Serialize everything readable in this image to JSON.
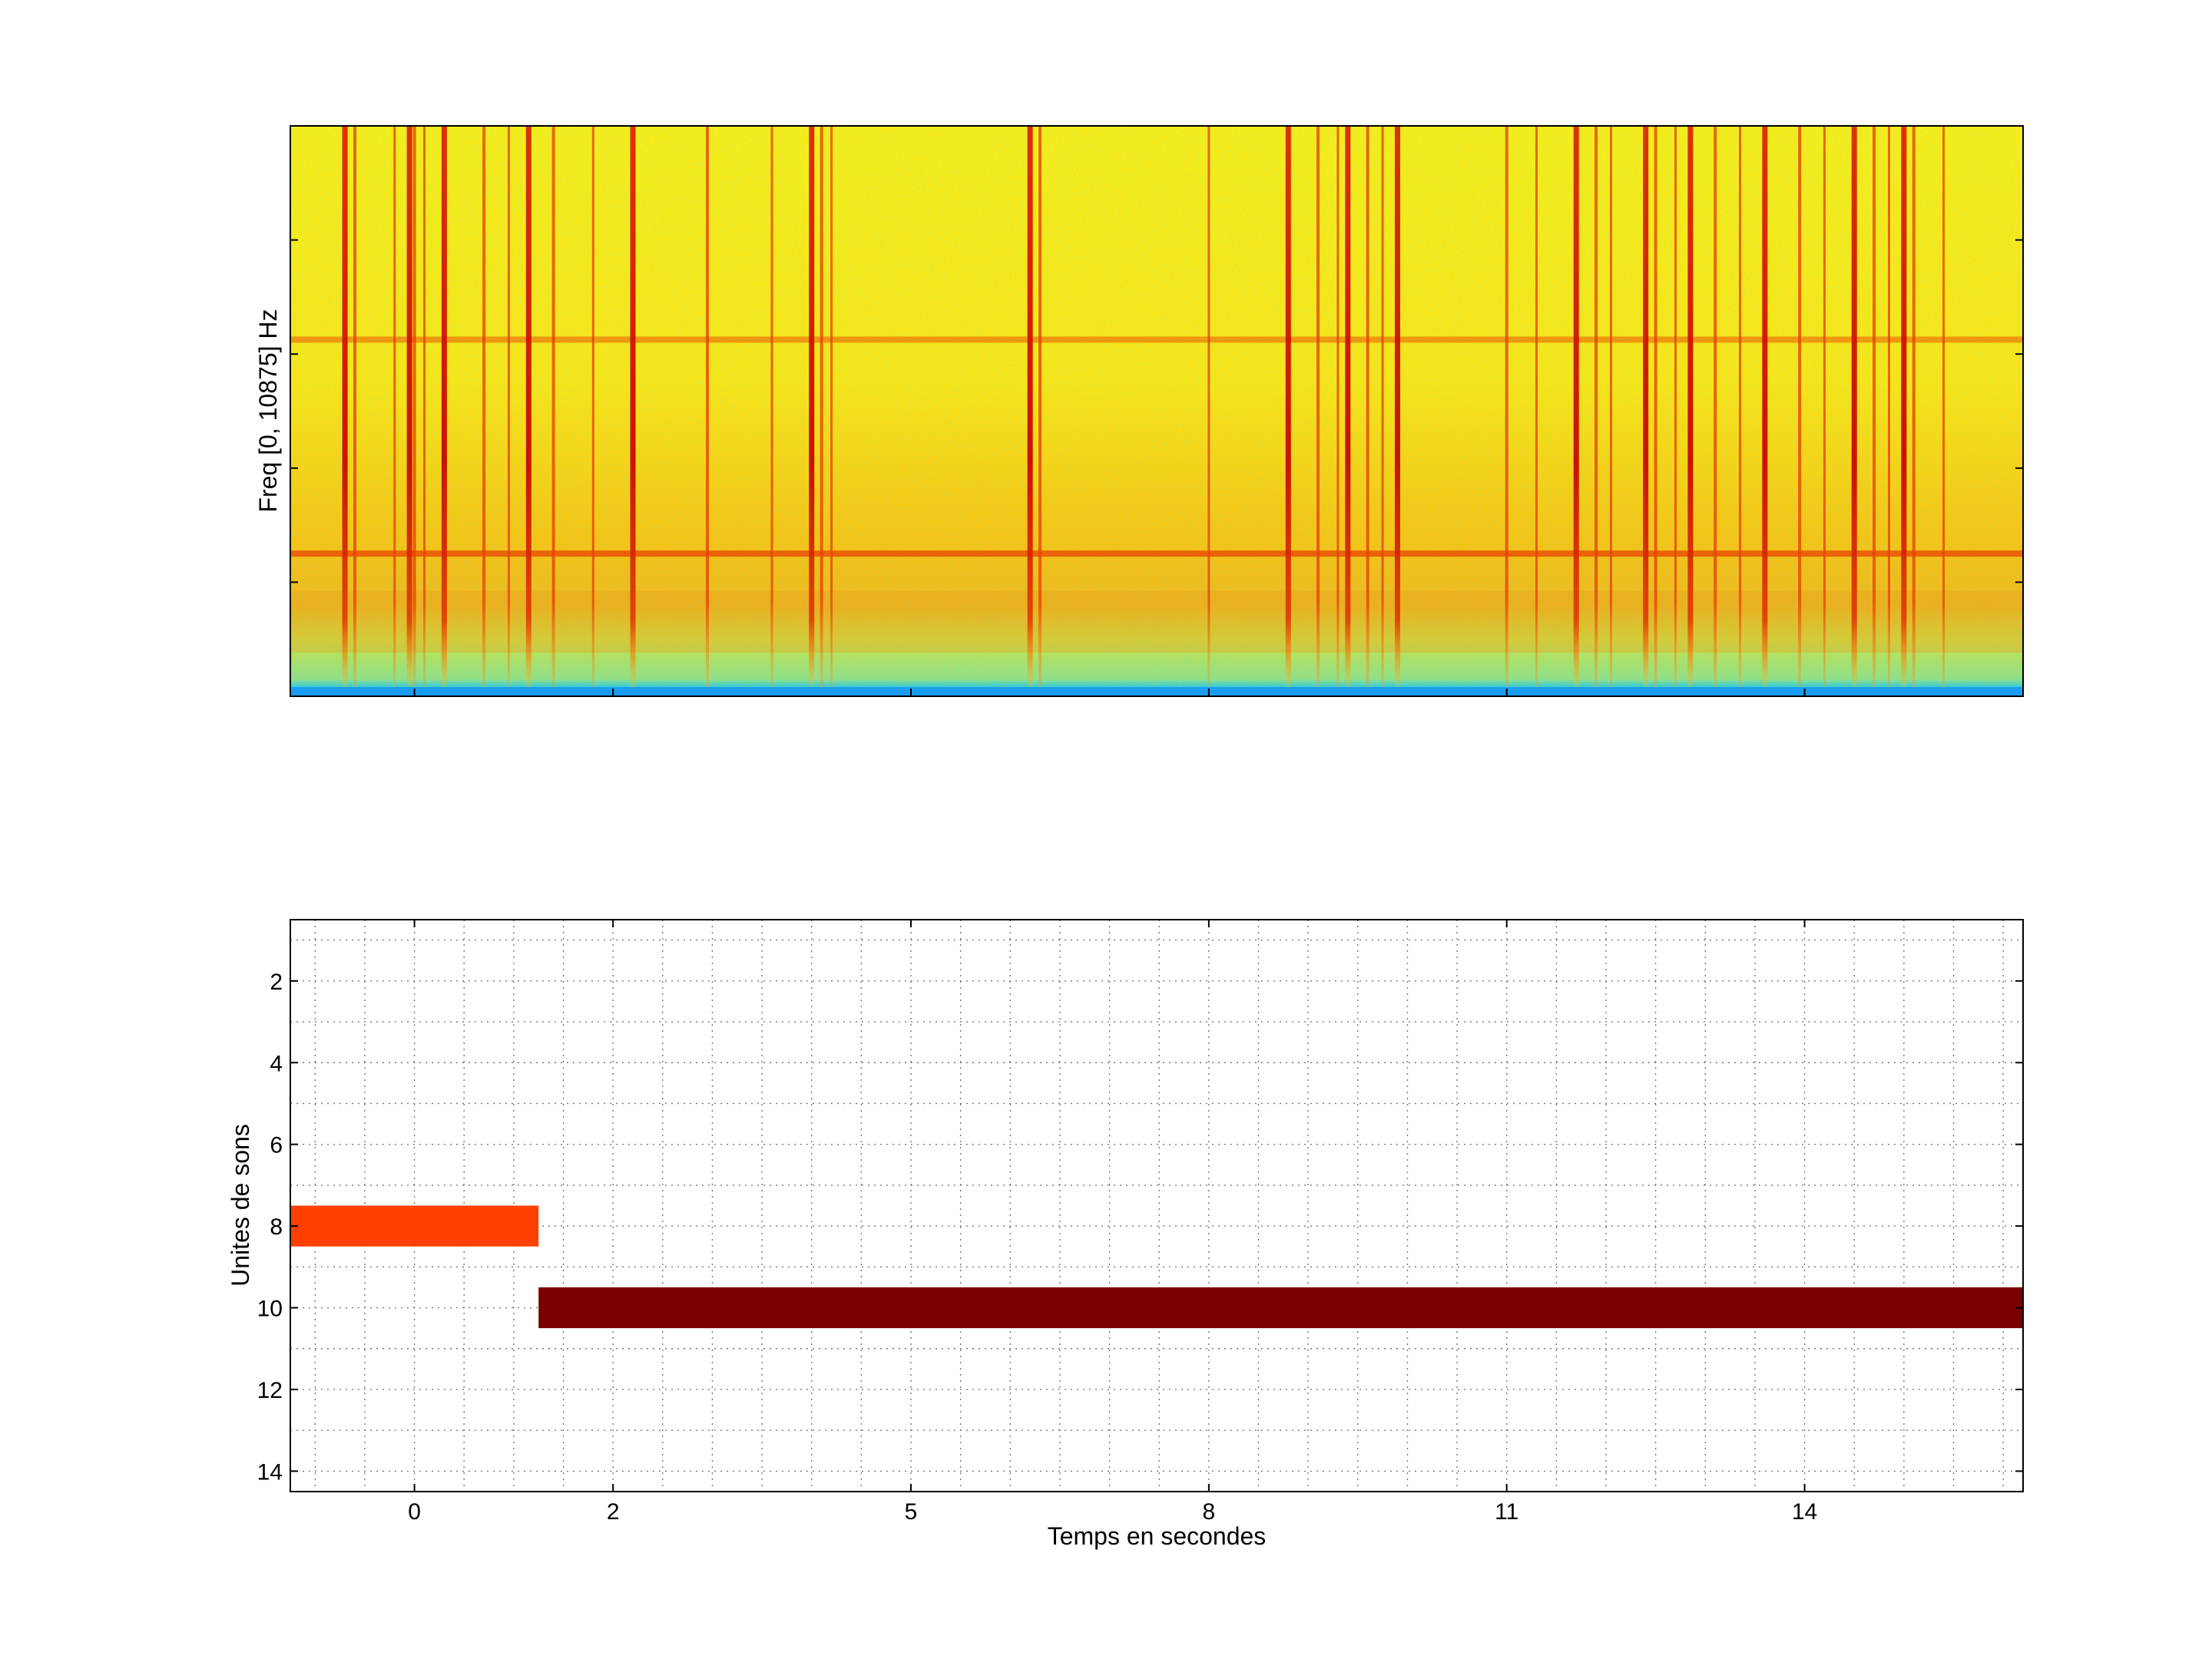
{
  "chart_data": [
    {
      "type": "heatmap",
      "title": "",
      "xlabel": "",
      "ylabel": "Freq [0, 10875] Hz",
      "y_range_hz": [
        0,
        10875
      ],
      "colormap": "jet",
      "grid": false,
      "horizontal_bands_hz": [
        2720,
        6800
      ],
      "vertical_onsets_s": [
        -0.7,
        -0.6,
        -0.2,
        -0.05,
        0.0,
        0.1,
        0.3,
        0.7,
        0.95,
        1.15,
        1.4,
        1.8,
        2.2,
        2.95,
        3.6,
        4.0,
        4.1,
        4.2,
        6.2,
        6.3,
        8.0,
        8.8,
        9.1,
        9.3,
        9.4,
        9.6,
        9.75,
        9.9,
        11.0,
        11.3,
        11.7,
        11.9,
        12.05,
        12.4,
        12.5,
        12.7,
        12.85,
        13.1,
        13.35,
        13.6,
        13.95,
        14.2,
        14.5,
        14.7,
        14.85,
        15.0,
        15.1,
        15.4
      ]
    },
    {
      "type": "bar",
      "orientation": "horizontal",
      "title": "",
      "xlabel": "Temps en secondes",
      "ylabel": "Unites de sons",
      "xlim": [
        -1.25,
        16.2
      ],
      "ylim": [
        0.5,
        14.5
      ],
      "x_ticks": [
        0,
        2,
        5,
        8,
        11,
        14
      ],
      "y_ticks": [
        2,
        4,
        6,
        8,
        10,
        12,
        14
      ],
      "y_reversed": true,
      "grid": true,
      "segments": [
        {
          "unit": 8,
          "start": -1.25,
          "end": 1.25,
          "color": "#ff4000"
        },
        {
          "unit": 10,
          "start": 1.25,
          "end": 16.2,
          "color": "#7a0000"
        }
      ]
    }
  ]
}
